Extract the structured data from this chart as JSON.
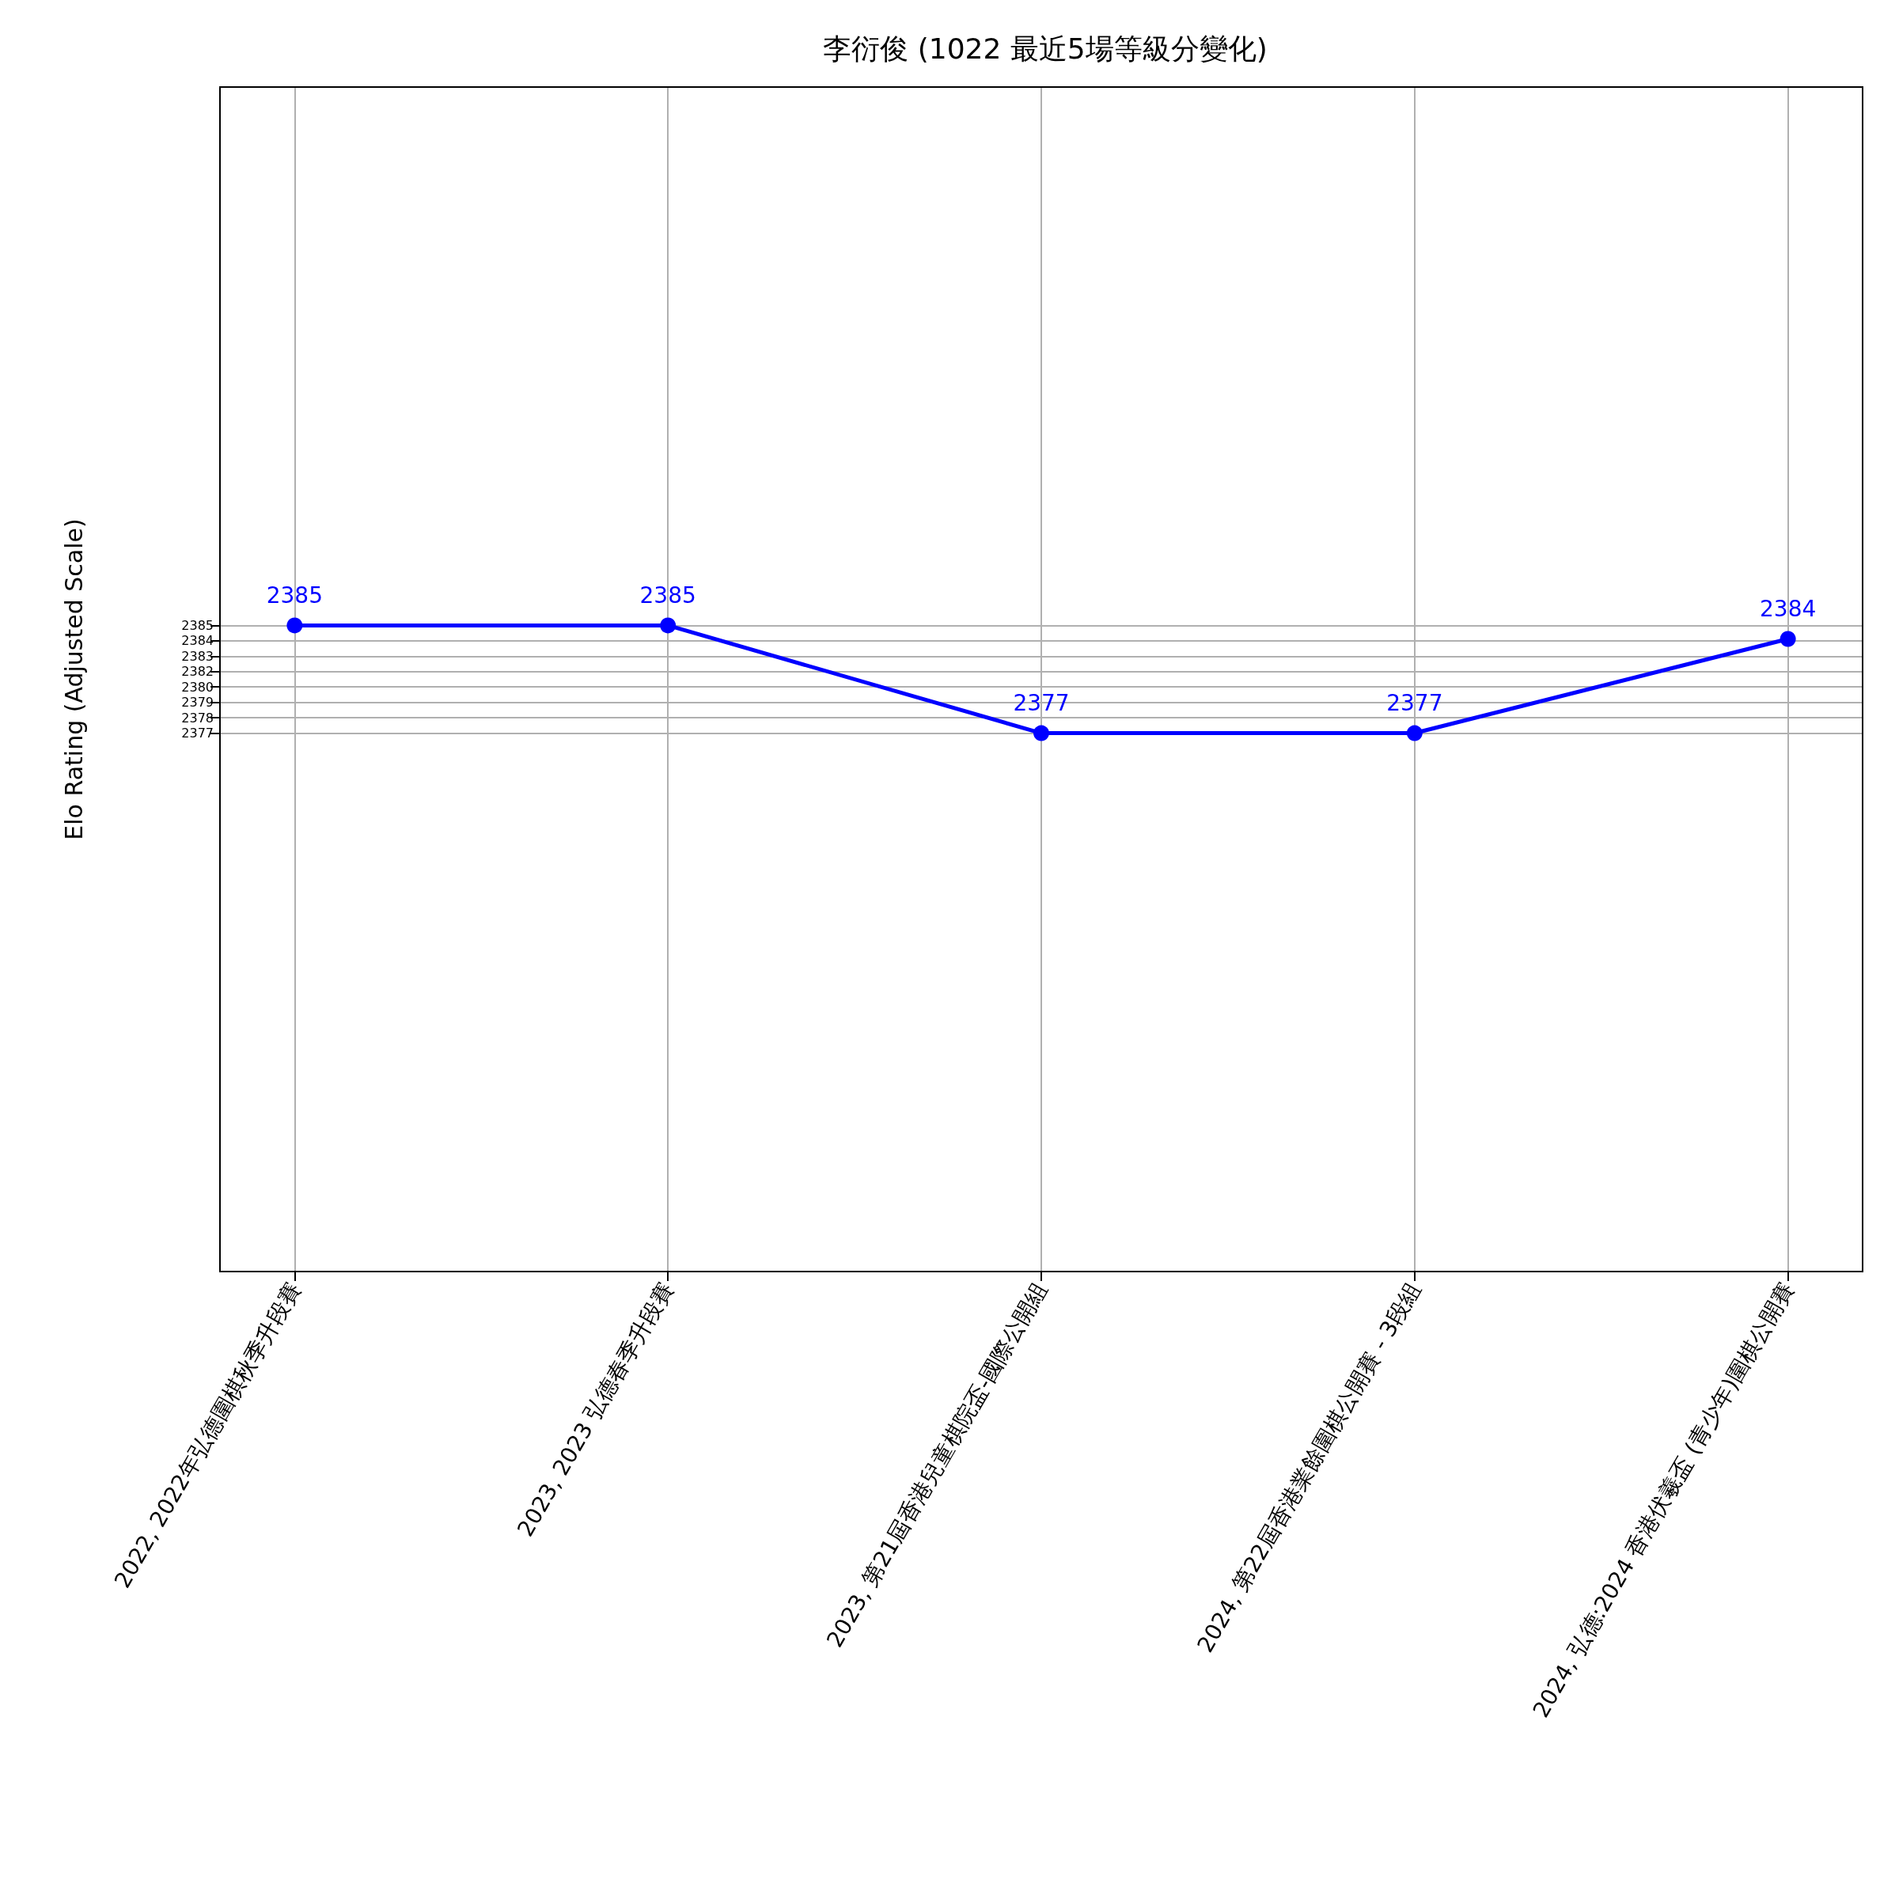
{
  "chart_data": {
    "type": "line",
    "title": "李衍俊 (1022 最近5場等級分變化)",
    "ylabel": "Elo Rating (Adjusted Scale)",
    "categories": [
      "2022, 2022年弘德圍棋秋季升段賽",
      "2023, 2023 弘德春季升段賽",
      "2023, 第21屆香港兒童棋院盃-國際公開組",
      "2024, 第22屆香港業餘圍棋公開賽 - 3段組",
      "2024, 弘德:2024 香港伏羲盃 (青少年)圍棋公開賽"
    ],
    "series": [
      {
        "color": "#0000ff",
        "values": [
          2385,
          2385,
          2377,
          2377,
          2384
        ]
      }
    ],
    "ylim": [
      2337,
      2425
    ],
    "yticks": [
      2377,
      {
        "value": 2378.14,
        "label": "2378"
      },
      {
        "value": 2379.29,
        "label": "2379"
      },
      {
        "value": 2380.43,
        "label": "2380"
      },
      {
        "value": 2381.57,
        "label": "2382"
      },
      {
        "value": 2382.71,
        "label": "2383"
      },
      {
        "value": 2383.86,
        "label": "2384"
      },
      2385
    ],
    "data_labels": true,
    "grid": true,
    "marker": "circle",
    "line_style": "solid"
  }
}
